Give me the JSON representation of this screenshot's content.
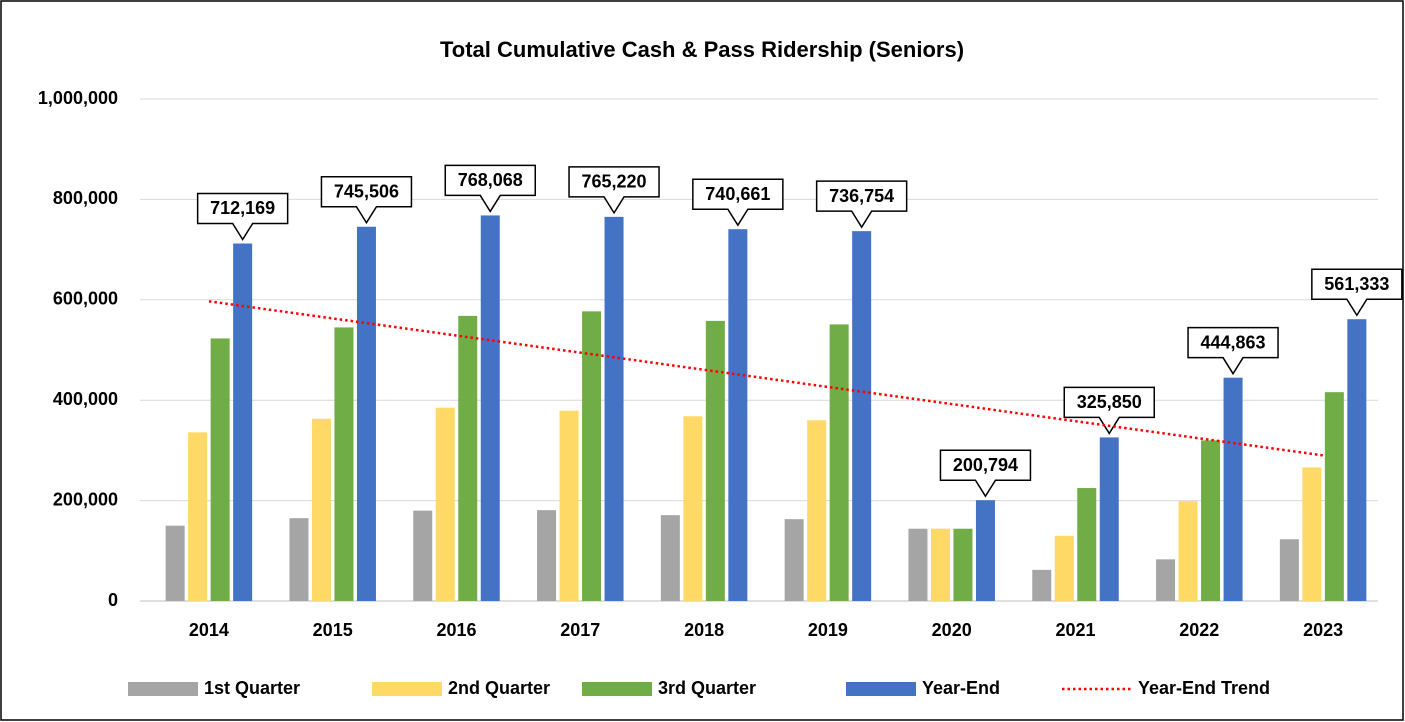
{
  "chart_data": {
    "type": "bar",
    "title": "Total Cumulative Cash & Pass Ridership (Seniors)",
    "categories": [
      "2014",
      "2015",
      "2016",
      "2017",
      "2018",
      "2019",
      "2020",
      "2021",
      "2022",
      "2023"
    ],
    "series": [
      {
        "name": "1st Quarter",
        "color": "#a5a5a5",
        "values": [
          150000,
          165000,
          180000,
          181000,
          171000,
          163000,
          144000,
          62000,
          83000,
          123000
        ]
      },
      {
        "name": "2nd Quarter",
        "color": "#ffd966",
        "values": [
          336000,
          363000,
          385000,
          379000,
          368000,
          360000,
          144000,
          130000,
          199000,
          266000
        ]
      },
      {
        "name": "3rd Quarter",
        "color": "#70ad47",
        "values": [
          523000,
          545000,
          568000,
          577000,
          558000,
          551000,
          144000,
          225000,
          320000,
          416000
        ]
      },
      {
        "name": "Year-End",
        "color": "#4472c4",
        "values": [
          712169,
          745506,
          768068,
          765220,
          740661,
          736754,
          200794,
          325850,
          444863,
          561333
        ],
        "value_labels": [
          "712,169",
          "745,506",
          "768,068",
          "765,220",
          "740,661",
          "736,754",
          "200,794",
          "325,850",
          "444,863",
          "561,333"
        ]
      },
      {
        "name": "Year-End Trend",
        "type": "line",
        "style": "dotted",
        "color": "#ff0000",
        "values": [
          597000,
          562900,
          528800,
          494700,
          460600,
          426400,
          392300,
          358200,
          324100,
          290000
        ]
      }
    ],
    "ylim": [
      0,
      1000000
    ],
    "yticks": [
      0,
      {
        "value": 200000,
        "label": "200,000"
      },
      {
        "value": 400000,
        "label": "400,000"
      },
      {
        "value": 600000,
        "label": "600,000"
      },
      {
        "value": 800000,
        "label": "800,000"
      },
      {
        "value": 1000000,
        "label": "1,000,000"
      }
    ],
    "grid": true,
    "legend": "bottom"
  }
}
